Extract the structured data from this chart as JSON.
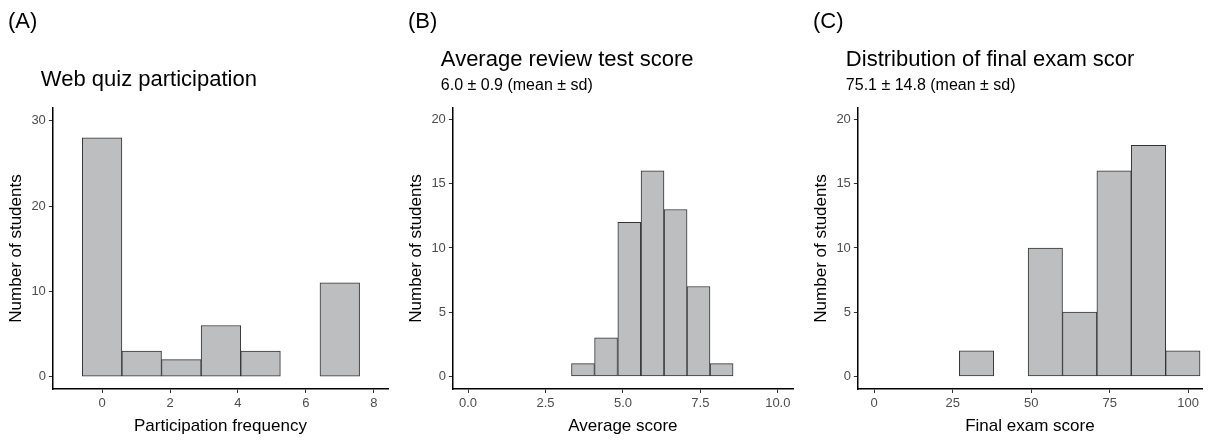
{
  "chart_data": [
    {
      "type": "histogram",
      "annotations": [
        "(A)"
      ],
      "title": "Web quiz participation",
      "xlabel": "Participation frequency",
      "ylabel": "Number of students",
      "bins": [
        -0.583,
        0.583,
        1.75,
        2.917,
        4.083,
        5.25,
        6.417,
        7.583
      ],
      "values": [
        28,
        3,
        2,
        6,
        3,
        0,
        11
      ],
      "color": "#bdbec0",
      "xlim": [
        -1.45,
        8.42
      ],
      "xticks": [
        0,
        2,
        4,
        6,
        8
      ],
      "ylim": [
        -1.45,
        31.5
      ],
      "yticks": [
        0,
        10,
        20,
        30
      ]
    },
    {
      "type": "histogram",
      "annotations": [
        "(B)"
      ],
      "title": "Average review test score",
      "subtitle": "6.0 ± 0.9 (mean ± sd)",
      "xlabel": "Average score",
      "ylabel": "Number of students",
      "bins": [
        3.34,
        4.08,
        4.83,
        5.58,
        6.33,
        7.07,
        7.81,
        8.56
      ],
      "values": [
        1,
        3,
        12,
        16,
        13,
        7,
        1
      ],
      "color": "#bdbec0",
      "xlim": [
        -0.49,
        10.49
      ],
      "xticks": [
        {
          "value": 0,
          "label": "0.0"
        },
        {
          "value": 2.5,
          "label": "2.5"
        },
        {
          "value": 5,
          "label": "5.0"
        },
        {
          "value": 7.5,
          "label": "7.5"
        },
        {
          "value": 10,
          "label": "10.0"
        }
      ],
      "ylim": [
        -0.98,
        20.9
      ],
      "yticks": [
        0,
        5,
        10,
        15,
        20
      ]
    },
    {
      "type": "histogram",
      "annotations": [
        "(C)"
      ],
      "title": "Distribution of final exam scor",
      "subtitle": "75.1 ± 14.8 (mean ± sd)",
      "xlabel": "Final exam score",
      "ylabel": "Number of students",
      "bins": [
        27.1,
        38.1,
        49.0,
        60.0,
        70.9,
        81.9,
        92.8,
        103.8
      ],
      "values": [
        2,
        0,
        10,
        5,
        16,
        18,
        2
      ],
      "color": "#bdbec0",
      "xlim": [
        -5.2,
        104.4
      ],
      "xticks": [
        0,
        25,
        50,
        75,
        100
      ],
      "ylim": [
        -0.98,
        20.9
      ],
      "yticks": [
        0,
        5,
        10,
        15,
        20
      ]
    }
  ]
}
